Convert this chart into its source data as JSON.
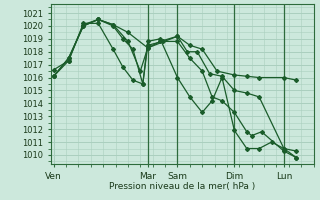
{
  "background_color": "#cce8dc",
  "grid_color": "#aacfbf",
  "line_color": "#1a5c2a",
  "xlabel": "Pression niveau de la mer( hPa )",
  "ylim": [
    1009.3,
    1021.7
  ],
  "yticks": [
    1010,
    1011,
    1012,
    1013,
    1014,
    1015,
    1016,
    1017,
    1018,
    1019,
    1020,
    1021
  ],
  "day_labels": [
    "Ven",
    "Mar",
    "Sam",
    "Dim",
    "Lun"
  ],
  "day_positions": [
    0.0,
    3.8,
    5.0,
    7.3,
    9.3
  ],
  "vline_positions": [
    3.8,
    5.0,
    7.3,
    9.3
  ],
  "xlim": [
    -0.1,
    10.5
  ],
  "series": [
    {
      "x": [
        0.0,
        0.6,
        1.2,
        1.8,
        2.4,
        3.0,
        3.8,
        5.0,
        5.5,
        6.0,
        6.6,
        7.3,
        7.8,
        8.3,
        9.3,
        9.8
      ],
      "y": [
        1016.1,
        1017.3,
        1020.1,
        1020.5,
        1020.1,
        1019.5,
        1018.3,
        1019.2,
        1018.5,
        1018.2,
        1016.5,
        1016.2,
        1016.1,
        1016.0,
        1016.0,
        1015.8
      ]
    },
    {
      "x": [
        0.0,
        0.6,
        1.2,
        1.8,
        2.4,
        3.0,
        3.5,
        3.8,
        4.3,
        5.0,
        5.4,
        5.8,
        6.3,
        6.8,
        7.3,
        7.8,
        8.3,
        9.3,
        9.8
      ],
      "y": [
        1016.1,
        1017.5,
        1020.0,
        1020.5,
        1020.1,
        1018.8,
        1016.5,
        1018.3,
        1018.8,
        1019.2,
        1018.0,
        1018.0,
        1016.3,
        1016.1,
        1015.0,
        1014.8,
        1014.5,
        1010.5,
        1010.3
      ]
    },
    {
      "x": [
        0.0,
        0.6,
        1.2,
        1.8,
        2.4,
        2.8,
        3.2,
        3.6,
        3.8,
        4.4,
        5.0,
        5.5,
        6.0,
        6.4,
        6.8,
        7.3,
        7.8,
        8.0,
        8.4,
        9.3,
        9.8
      ],
      "y": [
        1016.1,
        1017.5,
        1020.0,
        1020.5,
        1020.0,
        1019.0,
        1018.2,
        1015.5,
        1018.5,
        1018.8,
        1018.8,
        1017.5,
        1016.5,
        1014.5,
        1014.2,
        1013.3,
        1011.8,
        1011.5,
        1011.8,
        1010.3,
        1009.8
      ]
    },
    {
      "x": [
        0.0,
        0.6,
        1.2,
        1.8,
        2.4,
        2.8,
        3.2,
        3.6,
        3.8,
        4.3,
        5.0,
        5.5,
        6.0,
        6.4,
        6.8,
        7.3,
        7.8,
        8.3,
        8.8,
        9.3,
        9.8
      ],
      "y": [
        1016.6,
        1017.3,
        1020.2,
        1020.2,
        1018.2,
        1016.8,
        1015.8,
        1015.5,
        1018.8,
        1019.0,
        1016.0,
        1014.5,
        1013.3,
        1014.2,
        1016.0,
        1011.9,
        1010.5,
        1010.5,
        1011.0,
        1010.5,
        1009.8
      ]
    }
  ]
}
